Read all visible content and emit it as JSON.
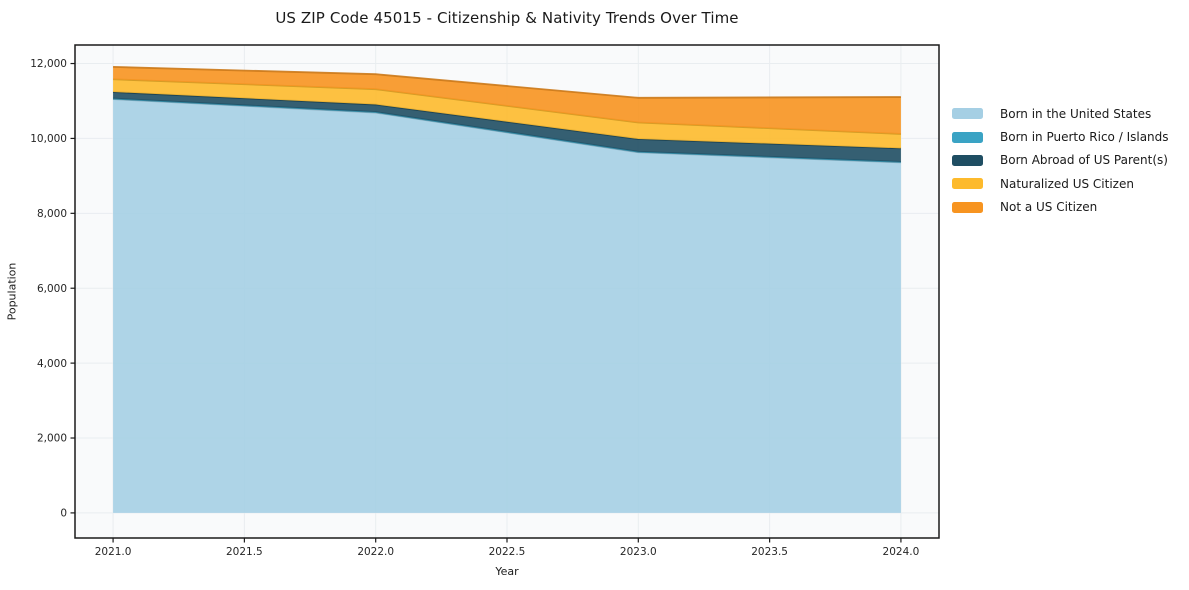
{
  "chart": {
    "title": "US ZIP Code 45015 - Citizenship & Nativity Trends Over Time",
    "xlabel": "Year",
    "ylabel": "Population"
  },
  "chart_data": {
    "type": "area",
    "stacked": true,
    "x": [
      2021,
      2022,
      2023,
      2024
    ],
    "series": [
      {
        "name": "Born in the United States",
        "color": "#a5cfe4",
        "values": [
          11050,
          10690,
          9630,
          9360
        ]
      },
      {
        "name": "Born in Puerto Rico / Islands",
        "color": "#3aa3c4",
        "values": [
          15,
          15,
          15,
          15
        ]
      },
      {
        "name": "Born Abroad of US Parent(s)",
        "color": "#1f4e63",
        "values": [
          175,
          200,
          340,
          360
        ]
      },
      {
        "name": "Naturalized US Citizen",
        "color": "#fdba2c",
        "values": [
          340,
          410,
          440,
          385
        ]
      },
      {
        "name": "Not a US Citizen",
        "color": "#f79420",
        "values": [
          330,
          400,
          660,
          985
        ]
      }
    ],
    "totals": [
      11910,
      11715,
      11085,
      11105
    ],
    "xticks": {
      "values": [
        2021.0,
        2021.5,
        2022.0,
        2022.5,
        2023.0,
        2023.5,
        2024.0
      ],
      "labels": [
        "2021.0",
        "2021.5",
        "2022.0",
        "2022.5",
        "2023.0",
        "2023.5",
        "2024.0"
      ]
    },
    "yticks": {
      "values": [
        0,
        2000,
        4000,
        6000,
        8000,
        10000,
        12000
      ],
      "labels": [
        "0",
        "2,000",
        "4,000",
        "6,000",
        "8,000",
        "10,000",
        "12,000"
      ]
    },
    "xlim": [
      2020.855,
      2024.145
    ],
    "ylim": [
      -670,
      12495
    ],
    "grid": true,
    "legend_position": "right-outside"
  },
  "colors": {
    "background": "#ffffff",
    "plot_background": "#f9fafb",
    "grid": "#e9edf0",
    "spine": "#1a1a1a",
    "tick_text": "#262626",
    "fill_opacity": 0.9
  }
}
